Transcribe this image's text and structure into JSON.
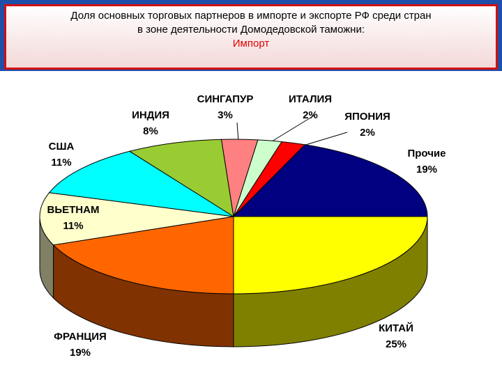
{
  "chart_data": {
    "type": "pie3d",
    "title": [
      "Доля основных торговых партнеров в импорте и экспорте РФ среди стран",
      "в зоне деятельности Домодедовской таможни:"
    ],
    "subtitle": "Импорт",
    "categories": [
      "КИТАЙ",
      "ФРАНЦИЯ",
      "ВЬЕТНАМ",
      "США",
      "ИНДИЯ",
      "СИНГАПУР",
      "ИТАЛИЯ",
      "ЯПОНИЯ",
      "Прочие"
    ],
    "values": [
      25,
      19,
      11,
      11,
      8,
      3,
      2,
      2,
      19
    ],
    "value_labels": [
      "25%",
      "19%",
      "11%",
      "11%",
      "8%",
      "3%",
      "2%",
      "2%",
      "19%"
    ],
    "colors": [
      "#ffff00",
      "#ff6600",
      "#ffffcc",
      "#00ffff",
      "#99cc33",
      "#ff8080",
      "#ccffcc",
      "#ff0000",
      "#000080"
    ]
  }
}
